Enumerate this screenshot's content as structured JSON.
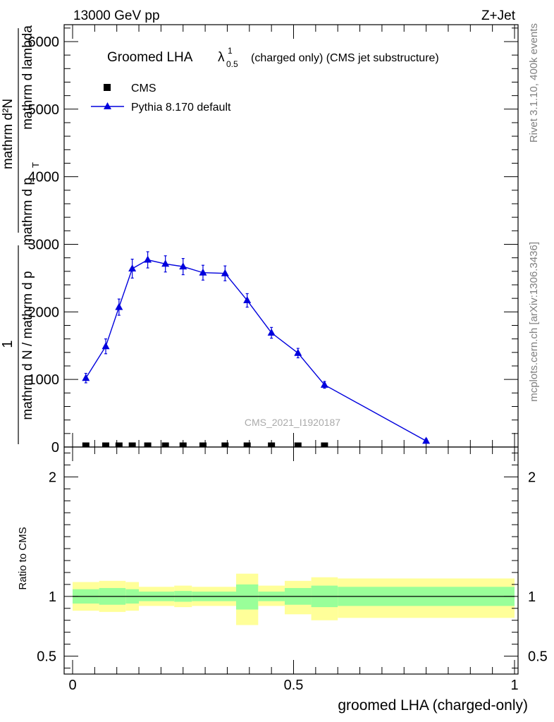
{
  "header": {
    "left": "13000 GeV pp",
    "right": "Z+Jet"
  },
  "side": {
    "rivet": "Rivet 3.1.10,  400k events",
    "mcplots": "mcplots.cern.ch [arXiv:1306.3436]"
  },
  "chart_data": [
    {
      "type": "scatter",
      "title": {
        "main": "Groomed LHA",
        "lambda": "λ",
        "sup": "1",
        "sub": "0.5",
        "suffix": "(charged only) (CMS jet substructure)"
      },
      "ylabel": {
        "one": "1",
        "numerator": "mathrm d N / mathrm d p",
        "denominator": "mathrm d N / mathrm d p",
        "dN": "mathrm d²N",
        "dpT_dlambda": "mathrm d p",
        "mathrm_d_lambda": "mathrm d lambda",
        "T": "T"
      },
      "analysis_label": "CMS_2021_I1920187",
      "xlim": [
        0,
        1
      ],
      "ylim": [
        0,
        6250
      ],
      "yticks": [
        {
          "v": 0,
          "label": "0"
        },
        {
          "v": 1000,
          "label": "1000"
        },
        {
          "v": 2000,
          "label": "2000"
        },
        {
          "v": 3000,
          "label": "3000"
        },
        {
          "v": 4000,
          "label": "4000"
        },
        {
          "v": 5000,
          "label": "5000"
        },
        {
          "v": 6000,
          "label": "6000"
        }
      ],
      "legend": {
        "placement": "top-left",
        "entries": [
          {
            "name": "CMS",
            "marker": "square",
            "color": "#000000"
          },
          {
            "name": "Pythia 8.170 default",
            "marker": "triangle",
            "color": "#0000dd"
          }
        ]
      },
      "series": [
        {
          "name": "CMS",
          "x": [
            0.03,
            0.075,
            0.105,
            0.135,
            0.17,
            0.21,
            0.25,
            0.295,
            0.345,
            0.395,
            0.45,
            0.51,
            0.57
          ],
          "values": [
            5,
            5,
            5,
            5,
            5,
            5,
            5,
            5,
            5,
            5,
            5,
            5,
            5
          ]
        },
        {
          "name": "Pythia 8.170 default",
          "x": [
            0.03,
            0.075,
            0.105,
            0.135,
            0.17,
            0.21,
            0.25,
            0.295,
            0.345,
            0.395,
            0.45,
            0.51,
            0.57,
            0.8
          ],
          "values": [
            1020,
            1490,
            2070,
            2640,
            2770,
            2710,
            2670,
            2580,
            2570,
            2170,
            1690,
            1390,
            920,
            90
          ],
          "errors": [
            70,
            110,
            120,
            140,
            120,
            120,
            120,
            110,
            110,
            100,
            80,
            70,
            50,
            30
          ]
        }
      ]
    },
    {
      "type": "band",
      "ylabel": "Ratio to CMS",
      "xlabel": "groomed LHA (charged-only)",
      "xlim": [
        0,
        1
      ],
      "ylim": [
        0.35,
        2.25
      ],
      "xticks": [
        {
          "v": 0,
          "label": "0"
        },
        {
          "v": 0.5,
          "label": "0.5"
        },
        {
          "v": 1,
          "label": "1"
        }
      ],
      "yticks": [
        {
          "v": 0.5,
          "label": "0.5"
        },
        {
          "v": 1,
          "label": "1"
        },
        {
          "v": 2,
          "label": "2"
        }
      ],
      "bins": [
        {
          "x0": 0.0,
          "x1": 0.06,
          "stat": [
            0.94,
            1.06
          ],
          "total": [
            0.88,
            1.12
          ]
        },
        {
          "x0": 0.06,
          "x1": 0.12,
          "stat": [
            0.93,
            1.07
          ],
          "total": [
            0.87,
            1.13
          ]
        },
        {
          "x0": 0.12,
          "x1": 0.15,
          "stat": [
            0.94,
            1.06
          ],
          "total": [
            0.88,
            1.12
          ]
        },
        {
          "x0": 0.15,
          "x1": 0.23,
          "stat": [
            0.96,
            1.04
          ],
          "total": [
            0.92,
            1.08
          ]
        },
        {
          "x0": 0.23,
          "x1": 0.27,
          "stat": [
            0.955,
            1.045
          ],
          "total": [
            0.91,
            1.09
          ]
        },
        {
          "x0": 0.27,
          "x1": 0.37,
          "stat": [
            0.96,
            1.04
          ],
          "total": [
            0.92,
            1.08
          ]
        },
        {
          "x0": 0.37,
          "x1": 0.42,
          "stat": [
            0.89,
            1.1
          ],
          "total": [
            0.76,
            1.19
          ]
        },
        {
          "x0": 0.42,
          "x1": 0.48,
          "stat": [
            0.96,
            1.04
          ],
          "total": [
            0.92,
            1.09
          ]
        },
        {
          "x0": 0.48,
          "x1": 0.54,
          "stat": [
            0.93,
            1.07
          ],
          "total": [
            0.85,
            1.13
          ]
        },
        {
          "x0": 0.54,
          "x1": 0.6,
          "stat": [
            0.91,
            1.09
          ],
          "total": [
            0.8,
            1.16
          ]
        },
        {
          "x0": 0.6,
          "x1": 1.0,
          "stat": [
            0.92,
            1.08
          ],
          "total": [
            0.82,
            1.15
          ]
        }
      ],
      "colors": {
        "stat": "#99ff99",
        "total": "#ffff99",
        "line": "#000000"
      }
    }
  ]
}
